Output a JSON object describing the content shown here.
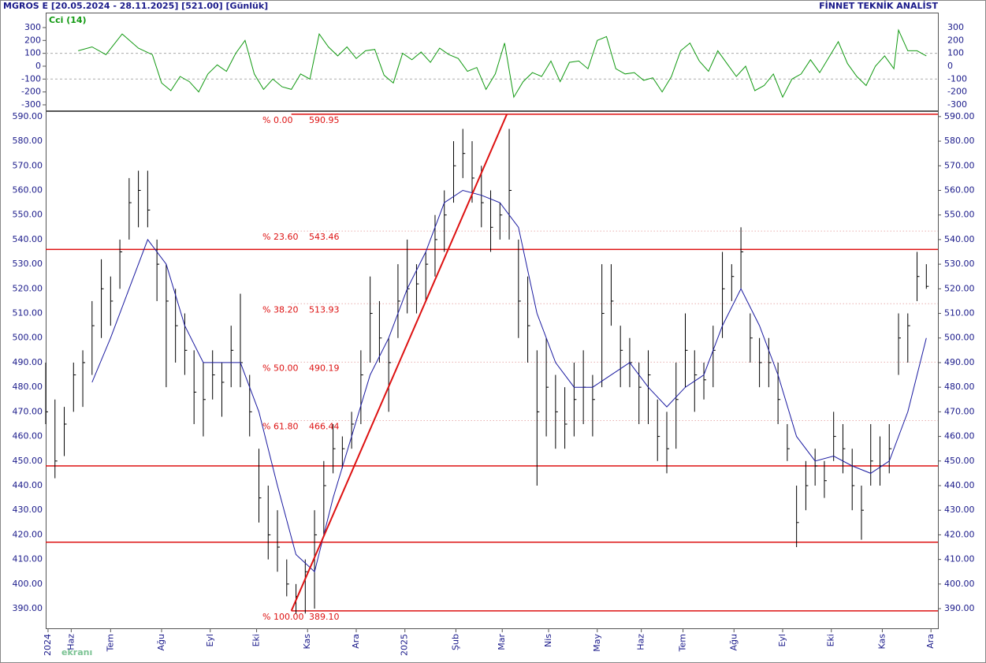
{
  "chart_data": [
    {
      "type": "line",
      "title": "MGROS E  [20.05.2024 - 28.11.2025]  [521.00]  [Günlük]",
      "source": "FİNNET TEKNİK ANALİST",
      "watermark": "ekranı",
      "label": "Cci (14)",
      "color": "#119911",
      "x": [
        14,
        20,
        26,
        33,
        40,
        46,
        50,
        54,
        58,
        62,
        66,
        70,
        74,
        78,
        82,
        86,
        90,
        94,
        98,
        102,
        106,
        110,
        114,
        118,
        122,
        126,
        130,
        134,
        138,
        142,
        146,
        150,
        154,
        158,
        162,
        166,
        170,
        174,
        178,
        182,
        186,
        190,
        194,
        198,
        202,
        206,
        210,
        214,
        218,
        222,
        226,
        230,
        234,
        238,
        242,
        246,
        250,
        254,
        258,
        262,
        266,
        270,
        274,
        278,
        282,
        286,
        290,
        294,
        298,
        302,
        306,
        310,
        314,
        318,
        322,
        326,
        330,
        334,
        338,
        342,
        346,
        350,
        354,
        358,
        362,
        366,
        368,
        372,
        376,
        380
      ],
      "values": [
        120,
        150,
        90,
        250,
        140,
        90,
        -130,
        -190,
        -80,
        -120,
        -200,
        -60,
        10,
        -40,
        100,
        200,
        -60,
        -180,
        -100,
        -160,
        -180,
        -60,
        -100,
        250,
        150,
        80,
        150,
        60,
        120,
        130,
        -70,
        -130,
        100,
        50,
        110,
        30,
        140,
        90,
        60,
        -40,
        -10,
        -180,
        -60,
        180,
        -240,
        -120,
        -50,
        -80,
        40,
        -120,
        30,
        40,
        -20,
        200,
        230,
        -20,
        -60,
        -50,
        -110,
        -90,
        -200,
        -80,
        120,
        180,
        40,
        -40,
        120,
        20,
        -80,
        0,
        -190,
        -150,
        -60,
        -240,
        -100,
        -60,
        50,
        -50,
        70,
        190,
        20,
        -80,
        -150,
        0,
        80,
        -20,
        280,
        120,
        120,
        80
      ],
      "xlim": [
        0,
        385
      ],
      "ylim": [
        -343,
        410
      ],
      "yticks": [
        -300,
        -200,
        -100,
        0,
        100,
        200,
        300
      ],
      "grid": true
    },
    {
      "type": "ohlc",
      "color": "#000000",
      "x": [
        0,
        4,
        8,
        12,
        16,
        20,
        24,
        28,
        32,
        36,
        40,
        44,
        48,
        52,
        56,
        60,
        64,
        68,
        72,
        76,
        80,
        84,
        88,
        92,
        96,
        100,
        104,
        108,
        112,
        116,
        120,
        124,
        128,
        132,
        136,
        140,
        144,
        148,
        152,
        156,
        160,
        164,
        168,
        172,
        176,
        180,
        184,
        188,
        192,
        196,
        200,
        204,
        208,
        212,
        216,
        220,
        224,
        228,
        232,
        236,
        240,
        244,
        248,
        252,
        256,
        260,
        264,
        268,
        272,
        276,
        280,
        284,
        288,
        292,
        296,
        300,
        304,
        308,
        312,
        316,
        320,
        324,
        328,
        332,
        336,
        340,
        344,
        348,
        352,
        356,
        360,
        364,
        368,
        372,
        376,
        380
      ],
      "high": [
        490,
        475,
        472,
        490,
        495,
        515,
        532,
        525,
        540,
        565,
        568,
        568,
        540,
        530,
        520,
        510,
        495,
        490,
        495,
        490,
        505,
        518,
        485,
        455,
        440,
        430,
        410,
        400,
        410,
        430,
        450,
        465,
        460,
        470,
        495,
        525,
        515,
        500,
        530,
        540,
        530,
        535,
        550,
        560,
        580,
        585,
        580,
        570,
        560,
        555,
        585,
        540,
        525,
        495,
        500,
        485,
        480,
        490,
        495,
        485,
        530,
        530,
        505,
        500,
        490,
        495,
        475,
        470,
        490,
        510,
        495,
        490,
        505,
        535,
        530,
        545,
        510,
        500,
        500,
        490,
        465,
        440,
        450,
        455,
        450,
        470,
        465,
        455,
        440,
        465,
        460,
        465,
        510,
        510,
        535,
        530
      ],
      "low": [
        465,
        443,
        452,
        470,
        472,
        485,
        500,
        505,
        520,
        540,
        545,
        545,
        515,
        480,
        490,
        485,
        465,
        460,
        475,
        468,
        480,
        480,
        460,
        425,
        410,
        405,
        395,
        388,
        388,
        390,
        420,
        445,
        447,
        455,
        465,
        490,
        490,
        470,
        500,
        510,
        510,
        515,
        525,
        535,
        555,
        565,
        555,
        545,
        535,
        540,
        540,
        500,
        490,
        440,
        460,
        455,
        455,
        460,
        465,
        460,
        480,
        505,
        480,
        480,
        465,
        465,
        450,
        445,
        455,
        480,
        470,
        475,
        480,
        500,
        515,
        520,
        490,
        480,
        480,
        465,
        450,
        415,
        430,
        440,
        435,
        450,
        445,
        430,
        418,
        440,
        440,
        445,
        485,
        490,
        515,
        520
      ],
      "close": [
        470,
        450,
        465,
        485,
        490,
        505,
        520,
        515,
        535,
        555,
        560,
        552,
        530,
        515,
        505,
        495,
        478,
        475,
        485,
        482,
        495,
        490,
        470,
        435,
        420,
        415,
        400,
        395,
        405,
        420,
        440,
        455,
        455,
        465,
        485,
        510,
        500,
        490,
        515,
        520,
        522,
        530,
        540,
        550,
        570,
        575,
        565,
        555,
        545,
        550,
        560,
        515,
        505,
        470,
        480,
        470,
        465,
        475,
        480,
        475,
        510,
        515,
        495,
        490,
        480,
        485,
        460,
        455,
        475,
        495,
        485,
        483,
        495,
        520,
        525,
        535,
        500,
        490,
        490,
        475,
        455,
        425,
        440,
        448,
        442,
        460,
        455,
        440,
        430,
        450,
        448,
        455,
        500,
        505,
        525,
        521
      ],
      "ma": {
        "color": "#1a1aa0",
        "x": [
          20,
          28,
          36,
          44,
          52,
          60,
          68,
          76,
          84,
          92,
          100,
          108,
          116,
          124,
          132,
          140,
          148,
          156,
          164,
          172,
          180,
          188,
          196,
          204,
          212,
          220,
          228,
          236,
          244,
          252,
          260,
          268,
          276,
          284,
          292,
          300,
          308,
          316,
          324,
          332,
          340,
          348,
          356,
          364,
          372,
          380
        ],
        "values": [
          482,
          500,
          520,
          540,
          530,
          505,
          490,
          490,
          490,
          470,
          440,
          412,
          405,
          435,
          460,
          485,
          500,
          520,
          535,
          555,
          560,
          558,
          555,
          545,
          510,
          490,
          480,
          480,
          485,
          490,
          480,
          472,
          480,
          485,
          505,
          520,
          505,
          485,
          460,
          450,
          452,
          448,
          445,
          450,
          470,
          500
        ]
      },
      "line_color": "#dd1111",
      "hlines": [
        536,
        448,
        417
      ],
      "trendline": {
        "x": [
          106,
          199
        ],
        "values": [
          389.1,
          590.95
        ]
      },
      "fib_levels": [
        {
          "label": "% 0.00",
          "value": 590.95
        },
        {
          "label": "% 23.60",
          "value": 543.46
        },
        {
          "label": "% 38.20",
          "value": 513.93
        },
        {
          "label": "% 50.00",
          "value": 490.19
        },
        {
          "label": "% 61.80",
          "value": 466.44
        },
        {
          "label": "% 100.00",
          "value": 389.1,
          "value_label": "389.10"
        }
      ],
      "xlim": [
        0,
        385
      ],
      "ylim": [
        382,
        592.2
      ],
      "yticks": [
        {
          "value": 390,
          "label": "390.00"
        },
        {
          "value": 400,
          "label": "400.00"
        },
        {
          "value": 410,
          "label": "410.00"
        },
        {
          "value": 420,
          "label": "420.00"
        },
        {
          "value": 430,
          "label": "430.00"
        },
        {
          "value": 440,
          "label": "440.00"
        },
        {
          "value": 450,
          "label": "450.00"
        },
        {
          "value": 460,
          "label": "460.00"
        },
        {
          "value": 470,
          "label": "470.00"
        },
        {
          "value": 480,
          "label": "480.00"
        },
        {
          "value": 490,
          "label": "490.00"
        },
        {
          "value": 500,
          "label": "500.00"
        },
        {
          "value": 510,
          "label": "510.00"
        },
        {
          "value": 520,
          "label": "520.00"
        },
        {
          "value": 530,
          "label": "530.00"
        },
        {
          "value": 540,
          "label": "540.00"
        },
        {
          "value": 550,
          "label": "550.00"
        },
        {
          "value": 560,
          "label": "560.00"
        },
        {
          "value": 570,
          "label": "570.00"
        },
        {
          "value": 580,
          "label": "580.00"
        },
        {
          "value": 590,
          "label": "590.00"
        }
      ],
      "xticks": [
        {
          "value": 1,
          "label": "2024"
        },
        {
          "value": 11,
          "label": "Haz"
        },
        {
          "value": 28,
          "label": "Tem"
        },
        {
          "value": 50,
          "label": "Ağu"
        },
        {
          "value": 71,
          "label": "Eyl"
        },
        {
          "value": 91,
          "label": "Eki"
        },
        {
          "value": 113,
          "label": "Kas"
        },
        {
          "value": 134,
          "label": "Ara"
        },
        {
          "value": 155,
          "label": "2025"
        },
        {
          "value": 177,
          "label": "Şub"
        },
        {
          "value": 197,
          "label": "Mar"
        },
        {
          "value": 217,
          "label": "Nis"
        },
        {
          "value": 238,
          "label": "May"
        },
        {
          "value": 257,
          "label": "Haz"
        },
        {
          "value": 275,
          "label": "Tem"
        },
        {
          "value": 297,
          "label": "Ağu"
        },
        {
          "value": 318,
          "label": "Eyl"
        },
        {
          "value": 339,
          "label": "Eki"
        },
        {
          "value": 361,
          "label": "Kas"
        },
        {
          "value": 382,
          "label": "Ara"
        }
      ]
    }
  ]
}
